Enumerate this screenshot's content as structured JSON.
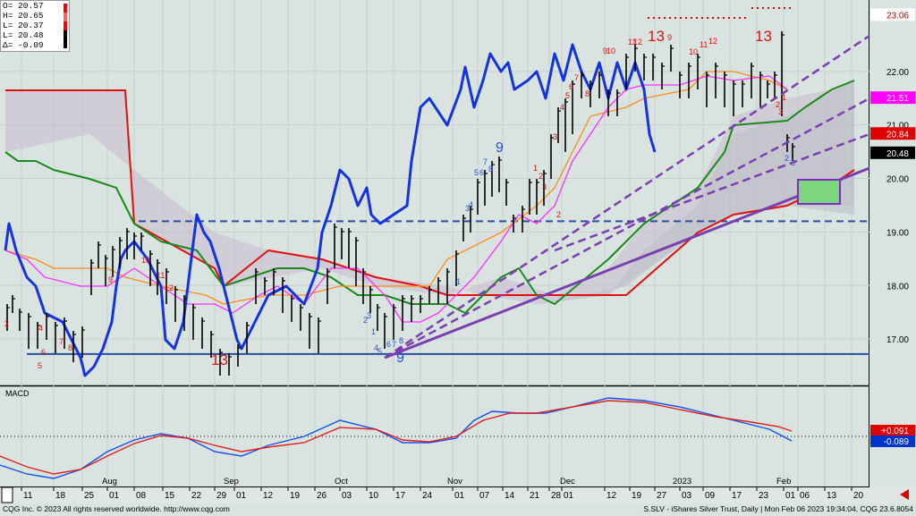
{
  "ohlc": {
    "labels": [
      "O=",
      "H=",
      "L=",
      "L=",
      "Δ="
    ],
    "values": [
      "20.57",
      "20.65",
      "20.37",
      "20.48",
      "-0.09"
    ]
  },
  "macd_label": "MACD",
  "footer": {
    "left": "CQG Inc. © 2023 All rights reserved worldwide. http://www.cqg.com",
    "right": "S.SLV - iShares Silver Trust, Daily | Mon Feb 06 2023 19:34:04, CQG 23.6.8054"
  },
  "chart_data": {
    "type": "line",
    "title": "S.SLV - iShares Silver Trust, Daily",
    "price_axis": {
      "min": 16.2,
      "max": 23.2,
      "ticks": [
        "23.06",
        "22.00",
        "21.51",
        "21.00",
        "20.84",
        "20.48",
        "20.00",
        "19.00",
        "18.00",
        "17.00"
      ]
    },
    "price_tags": [
      {
        "value": "23.06",
        "price": 23.06,
        "bg": "#ffffff",
        "fg": "#d40000"
      },
      {
        "value": "21.51",
        "price": 21.51,
        "bg": "#ff00ff",
        "fg": "#ffffff"
      },
      {
        "value": "20.84",
        "price": 20.84,
        "bg": "#e00000",
        "fg": "#ffffff"
      },
      {
        "value": "20.48",
        "price": 20.48,
        "bg": "#000000",
        "fg": "#ffffff"
      }
    ],
    "macd_axis": {
      "tags": [
        {
          "value": "+0.091",
          "bg": "#e00000"
        },
        {
          "value": "-0.089",
          "bg": "#0033cc"
        }
      ]
    },
    "months": [
      "Aug",
      "Sep",
      "Oct",
      "Nov",
      "Dec",
      "2023",
      "Feb"
    ],
    "day_ticks": [
      "11",
      "18",
      "25",
      "01",
      "08",
      "15",
      "22",
      "29",
      "01",
      "12",
      "19",
      "26",
      "03",
      "10",
      "17",
      "24",
      "01",
      "07",
      "14",
      "21",
      "28",
      "01",
      "12",
      "19",
      "27",
      "03",
      "09",
      "17",
      "23",
      "01",
      "06",
      "13",
      "20"
    ],
    "horizontal_levels": [
      {
        "price": 19.2,
        "style": "dashed",
        "color": "#2a4fa0"
      },
      {
        "price": 16.72,
        "style": "solid",
        "color": "#2a4fa0"
      }
    ],
    "td_counts_red": [
      "2",
      "4",
      "6",
      "5",
      "7",
      "8",
      "9",
      "10",
      "11",
      "12",
      "13",
      "3",
      "2",
      "1",
      "2",
      "3",
      "4",
      "5",
      "6",
      "7",
      "8",
      "9",
      "10",
      "11",
      "12",
      "13",
      "9",
      "10",
      "11",
      "12",
      "13",
      "1",
      "2",
      "3"
    ],
    "td_counts_blue": [
      "1",
      "2",
      "3",
      "4",
      "5",
      "6",
      "7",
      "8",
      "9",
      "3",
      "4",
      "5",
      "6",
      "7",
      "8",
      "9",
      "1",
      "2",
      "3"
    ],
    "colors": {
      "price_line": "#1432e0",
      "kijun": "#e01010",
      "senkou_b": "#1a8a1a",
      "tenkan": "#ff30ff",
      "orange": "#ff8c1a",
      "trend": "#7a3fb0",
      "macd": "#1450f0",
      "signal": "#e02020"
    }
  }
}
